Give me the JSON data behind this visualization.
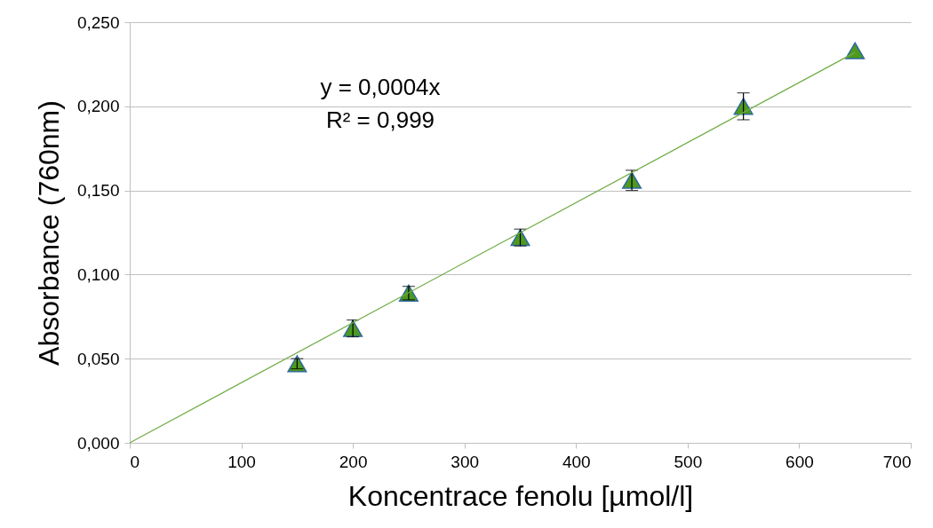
{
  "chart_data": {
    "type": "scatter",
    "xlabel": "Koncentrace fenolu [µmol/l]",
    "ylabel": "Absorbance (760nm)",
    "x": [
      150,
      200,
      250,
      350,
      450,
      550,
      650
    ],
    "series": [
      {
        "color": "#4e9a1c",
        "marker": "triangle",
        "values": [
          0.047,
          0.068,
          0.089,
          0.122,
          0.156,
          0.2,
          0.233
        ],
        "errors": [
          0.003,
          0.005,
          0.004,
          0.005,
          0.006,
          0.008,
          null
        ]
      },
      {
        "type": "line",
        "color": "#70ad47",
        "x": [
          0,
          650
        ],
        "values": [
          0,
          0.232
        ]
      }
    ],
    "annotations": [
      "y = 0,0004x",
      "R² = 0,999"
    ],
    "xlim": [
      0,
      700
    ],
    "xticks": [
      0,
      100,
      200,
      300,
      400,
      500,
      600,
      700
    ],
    "ylim": [
      0,
      0.25
    ],
    "yticks": [
      {
        "value": 0,
        "label": "0,000"
      },
      {
        "value": 0.05,
        "label": "0,050"
      },
      {
        "value": 0.1,
        "label": "0,100"
      },
      {
        "value": 0.15,
        "label": "0,150"
      },
      {
        "value": 0.2,
        "label": "0,200"
      },
      {
        "value": 0.25,
        "label": "0,250"
      }
    ],
    "grid": "y"
  }
}
